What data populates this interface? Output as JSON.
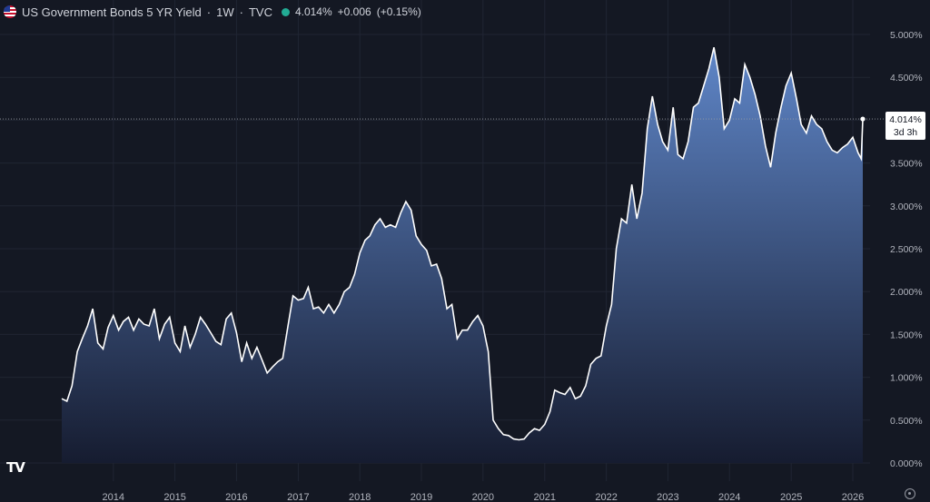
{
  "header": {
    "title": "US Government Bonds 5 YR Yield",
    "interval": "1W",
    "source": "TVC",
    "price": "4.014%",
    "change": "+0.006",
    "change_pct": "(+0.15%)",
    "sep": "·"
  },
  "price_label": {
    "value": "4.014%",
    "countdown": "3d 3h"
  },
  "colors": {
    "background": "#141823",
    "line": "#ffffff",
    "area_top": "#5f86c8",
    "area_bottom": "#161c30",
    "grid": "#202533",
    "axis_text": "#b2b5be"
  },
  "chart_data": {
    "type": "area",
    "y_ticks": [
      "0.000%",
      "0.500%",
      "1.000%",
      "1.500%",
      "2.000%",
      "2.500%",
      "3.000%",
      "3.500%",
      "4.000%",
      "4.500%",
      "5.000%"
    ],
    "x_ticks": [
      "2014",
      "2015",
      "2016",
      "2017",
      "2018",
      "2019",
      "2020",
      "2021",
      "2022",
      "2023",
      "2024",
      "2025",
      "2026"
    ],
    "ylim": [
      0,
      5
    ],
    "last_value": 4.014,
    "grid": true,
    "series": [
      {
        "points": [
          [
            "2013-03-01",
            0.75
          ],
          [
            "2013-04-01",
            0.72
          ],
          [
            "2013-05-01",
            0.9
          ],
          [
            "2013-06-01",
            1.3
          ],
          [
            "2013-07-01",
            1.45
          ],
          [
            "2013-08-01",
            1.6
          ],
          [
            "2013-09-01",
            1.8
          ],
          [
            "2013-10-01",
            1.4
          ],
          [
            "2013-11-01",
            1.33
          ],
          [
            "2013-12-01",
            1.58
          ],
          [
            "2014-01-01",
            1.72
          ],
          [
            "2014-02-01",
            1.55
          ],
          [
            "2014-03-01",
            1.65
          ],
          [
            "2014-04-01",
            1.7
          ],
          [
            "2014-05-01",
            1.55
          ],
          [
            "2014-06-01",
            1.68
          ],
          [
            "2014-07-01",
            1.62
          ],
          [
            "2014-08-01",
            1.6
          ],
          [
            "2014-09-01",
            1.8
          ],
          [
            "2014-10-01",
            1.45
          ],
          [
            "2014-11-01",
            1.62
          ],
          [
            "2014-12-01",
            1.7
          ],
          [
            "2015-01-01",
            1.4
          ],
          [
            "2015-02-01",
            1.3
          ],
          [
            "2015-03-01",
            1.6
          ],
          [
            "2015-04-01",
            1.35
          ],
          [
            "2015-05-01",
            1.5
          ],
          [
            "2015-06-01",
            1.7
          ],
          [
            "2015-07-01",
            1.62
          ],
          [
            "2015-08-01",
            1.52
          ],
          [
            "2015-09-01",
            1.42
          ],
          [
            "2015-10-01",
            1.38
          ],
          [
            "2015-11-01",
            1.68
          ],
          [
            "2015-12-01",
            1.75
          ],
          [
            "2016-01-01",
            1.52
          ],
          [
            "2016-02-01",
            1.18
          ],
          [
            "2016-03-01",
            1.4
          ],
          [
            "2016-04-01",
            1.22
          ],
          [
            "2016-05-01",
            1.35
          ],
          [
            "2016-06-01",
            1.2
          ],
          [
            "2016-07-01",
            1.05
          ],
          [
            "2016-08-01",
            1.12
          ],
          [
            "2016-09-01",
            1.18
          ],
          [
            "2016-10-01",
            1.22
          ],
          [
            "2016-11-01",
            1.6
          ],
          [
            "2016-12-01",
            1.95
          ],
          [
            "2017-01-01",
            1.9
          ],
          [
            "2017-02-01",
            1.92
          ],
          [
            "2017-03-01",
            2.05
          ],
          [
            "2017-04-01",
            1.8
          ],
          [
            "2017-05-01",
            1.82
          ],
          [
            "2017-06-01",
            1.75
          ],
          [
            "2017-07-01",
            1.85
          ],
          [
            "2017-08-01",
            1.75
          ],
          [
            "2017-09-01",
            1.85
          ],
          [
            "2017-10-01",
            2.0
          ],
          [
            "2017-11-01",
            2.05
          ],
          [
            "2017-12-01",
            2.2
          ],
          [
            "2018-01-01",
            2.45
          ],
          [
            "2018-02-01",
            2.6
          ],
          [
            "2018-03-01",
            2.65
          ],
          [
            "2018-04-01",
            2.78
          ],
          [
            "2018-05-01",
            2.85
          ],
          [
            "2018-06-01",
            2.75
          ],
          [
            "2018-07-01",
            2.78
          ],
          [
            "2018-08-01",
            2.75
          ],
          [
            "2018-09-01",
            2.92
          ],
          [
            "2018-10-01",
            3.05
          ],
          [
            "2018-11-01",
            2.95
          ],
          [
            "2018-12-01",
            2.65
          ],
          [
            "2019-01-01",
            2.55
          ],
          [
            "2019-02-01",
            2.48
          ],
          [
            "2019-03-01",
            2.3
          ],
          [
            "2019-04-01",
            2.32
          ],
          [
            "2019-05-01",
            2.15
          ],
          [
            "2019-06-01",
            1.8
          ],
          [
            "2019-07-01",
            1.85
          ],
          [
            "2019-08-01",
            1.45
          ],
          [
            "2019-09-01",
            1.55
          ],
          [
            "2019-10-01",
            1.55
          ],
          [
            "2019-11-01",
            1.65
          ],
          [
            "2019-12-01",
            1.72
          ],
          [
            "2020-01-01",
            1.6
          ],
          [
            "2020-02-01",
            1.3
          ],
          [
            "2020-03-01",
            0.5
          ],
          [
            "2020-04-01",
            0.4
          ],
          [
            "2020-05-01",
            0.33
          ],
          [
            "2020-06-01",
            0.32
          ],
          [
            "2020-07-01",
            0.28
          ],
          [
            "2020-08-01",
            0.27
          ],
          [
            "2020-09-01",
            0.28
          ],
          [
            "2020-10-01",
            0.35
          ],
          [
            "2020-11-01",
            0.4
          ],
          [
            "2020-12-01",
            0.38
          ],
          [
            "2021-01-01",
            0.45
          ],
          [
            "2021-02-01",
            0.6
          ],
          [
            "2021-03-01",
            0.85
          ],
          [
            "2021-04-01",
            0.82
          ],
          [
            "2021-05-01",
            0.8
          ],
          [
            "2021-06-01",
            0.88
          ],
          [
            "2021-07-01",
            0.75
          ],
          [
            "2021-08-01",
            0.78
          ],
          [
            "2021-09-01",
            0.9
          ],
          [
            "2021-10-01",
            1.15
          ],
          [
            "2021-11-01",
            1.22
          ],
          [
            "2021-12-01",
            1.25
          ],
          [
            "2022-01-01",
            1.6
          ],
          [
            "2022-02-01",
            1.85
          ],
          [
            "2022-03-01",
            2.5
          ],
          [
            "2022-04-01",
            2.85
          ],
          [
            "2022-05-01",
            2.8
          ],
          [
            "2022-06-01",
            3.25
          ],
          [
            "2022-07-01",
            2.85
          ],
          [
            "2022-08-01",
            3.15
          ],
          [
            "2022-09-01",
            3.9
          ],
          [
            "2022-10-01",
            4.28
          ],
          [
            "2022-11-01",
            3.95
          ],
          [
            "2022-12-01",
            3.75
          ],
          [
            "2023-01-01",
            3.65
          ],
          [
            "2023-02-01",
            4.15
          ],
          [
            "2023-03-01",
            3.6
          ],
          [
            "2023-04-01",
            3.55
          ],
          [
            "2023-05-01",
            3.75
          ],
          [
            "2023-06-01",
            4.15
          ],
          [
            "2023-07-01",
            4.2
          ],
          [
            "2023-08-01",
            4.4
          ],
          [
            "2023-09-01",
            4.6
          ],
          [
            "2023-10-01",
            4.85
          ],
          [
            "2023-11-01",
            4.5
          ],
          [
            "2023-12-01",
            3.9
          ],
          [
            "2024-01-01",
            4.0
          ],
          [
            "2024-02-01",
            4.25
          ],
          [
            "2024-03-01",
            4.2
          ],
          [
            "2024-04-01",
            4.65
          ],
          [
            "2024-05-01",
            4.5
          ],
          [
            "2024-06-01",
            4.3
          ],
          [
            "2024-07-01",
            4.05
          ],
          [
            "2024-08-01",
            3.7
          ],
          [
            "2024-09-01",
            3.45
          ],
          [
            "2024-10-01",
            3.85
          ],
          [
            "2024-11-01",
            4.15
          ],
          [
            "2024-12-01",
            4.4
          ],
          [
            "2025-01-01",
            4.55
          ],
          [
            "2025-02-01",
            4.25
          ],
          [
            "2025-03-01",
            3.95
          ],
          [
            "2025-04-01",
            3.85
          ],
          [
            "2025-05-01",
            4.05
          ],
          [
            "2025-06-01",
            3.95
          ],
          [
            "2025-07-01",
            3.9
          ],
          [
            "2025-08-01",
            3.75
          ],
          [
            "2025-09-01",
            3.65
          ],
          [
            "2025-10-01",
            3.62
          ],
          [
            "2025-11-01",
            3.68
          ],
          [
            "2025-12-01",
            3.72
          ],
          [
            "2026-01-01",
            3.8
          ],
          [
            "2026-02-01",
            3.62
          ],
          [
            "2026-02-20",
            3.55
          ],
          [
            "2026-03-01",
            4.014
          ]
        ]
      }
    ]
  }
}
